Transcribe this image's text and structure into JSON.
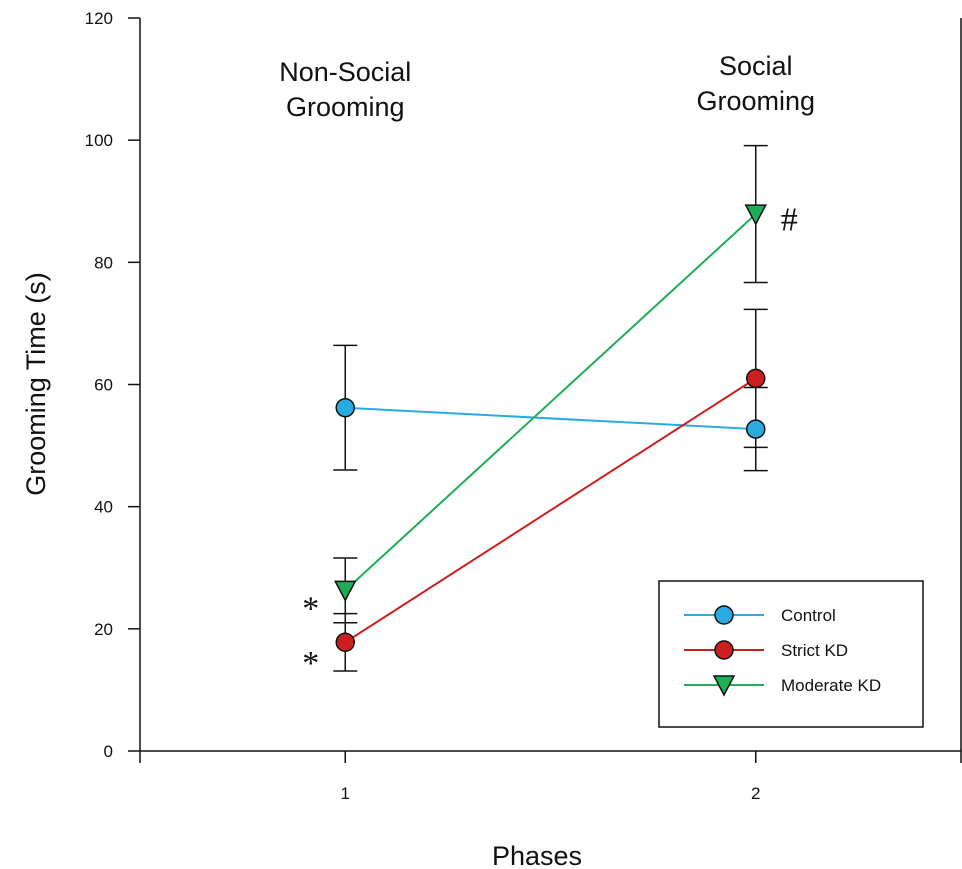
{
  "chart_data": {
    "type": "line",
    "xlabel": "Phases",
    "ylabel": "Grooming Time (s)",
    "x": [
      1,
      2
    ],
    "x_ticks": [
      "1",
      "2"
    ],
    "xlim": [
      0.5,
      2.5
    ],
    "ylim": [
      0,
      120
    ],
    "y_ticks": [
      "0",
      "20",
      "40",
      "60",
      "80",
      "100",
      "120"
    ],
    "grid": false,
    "legend_position": "bottom-right",
    "phase_labels": [
      {
        "x": 1,
        "lines": [
          "Non-Social",
          "Grooming"
        ]
      },
      {
        "x": 2,
        "lines": [
          "Social",
          "Grooming"
        ]
      }
    ],
    "series": [
      {
        "name": "Control",
        "color": "#29abe2",
        "marker": "circle",
        "values": [
          56.2,
          52.7
        ],
        "errors": [
          10.2,
          6.8
        ]
      },
      {
        "name": "Strict KD",
        "color": "#cc1f1f",
        "marker": "circle",
        "values": [
          17.8,
          61.0
        ],
        "errors": [
          4.7,
          11.3
        ]
      },
      {
        "name": "Moderate KD",
        "color": "#1fae57",
        "marker": "triangle-down",
        "values": [
          26.3,
          87.9
        ],
        "errors": [
          5.3,
          11.2
        ]
      }
    ],
    "annotations": [
      {
        "text": "*",
        "x": 1,
        "y": 25.8
      },
      {
        "text": "*",
        "x": 1,
        "y": 16.9
      },
      {
        "text": "#",
        "x": 2,
        "y": 87.5
      }
    ]
  }
}
